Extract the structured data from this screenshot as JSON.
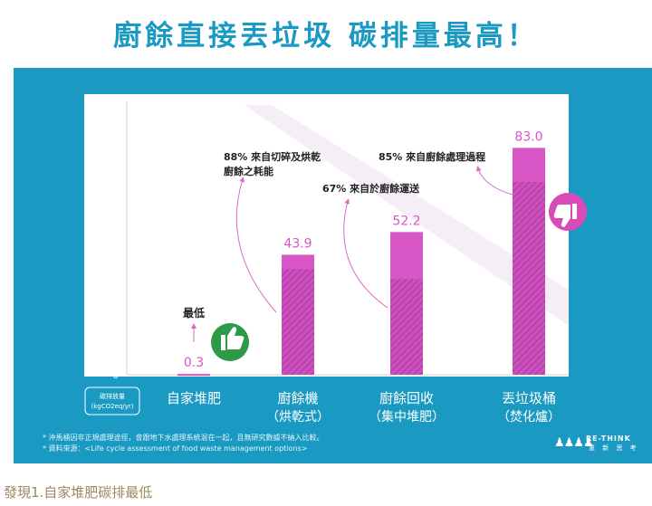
{
  "title": "廚餘直接丟垃圾 碳排量最高！",
  "chart_data": {
    "type": "bar",
    "categories": [
      {
        "line1": "自家堆肥",
        "line2": ""
      },
      {
        "line1": "廚餘機",
        "line2": "（烘乾式）"
      },
      {
        "line1": "廚餘回收",
        "line2": "（集中堆肥）"
      },
      {
        "line1": "丟垃圾桶",
        "line2": "（焚化爐）"
      }
    ],
    "values": [
      0.3,
      43.9,
      52.2,
      83.0
    ],
    "value_labels": [
      "0.3",
      "43.9",
      "52.2",
      "83.0"
    ],
    "hatched_share": [
      0,
      0.88,
      0.67,
      0.85
    ],
    "ylim": [
      0,
      100
    ],
    "yticks": [
      "0",
      "50",
      "100"
    ],
    "ylabel_lines": [
      "碳排放量",
      "(kgCO2eq/yr)"
    ],
    "annotations": [
      {
        "lines": [
          "最低"
        ]
      },
      {
        "lines": [
          "88% 來自切碎及烘乾",
          "廚餘之耗能"
        ]
      },
      {
        "lines": [
          "67% 來自於廚餘運送"
        ]
      },
      {
        "lines": [
          "85% 來自廚餘處理過程"
        ]
      }
    ],
    "colors": {
      "bar": "#d956c7",
      "hatch": "#b33aa4",
      "panel": "#1a9ac2",
      "thumb_up": "#2e9a47",
      "thumb_down": "#d94bb6"
    }
  },
  "icons": {
    "thumb_up": "thumbs-up-icon",
    "thumb_down": "thumbs-down-icon"
  },
  "footnotes": [
    "* 沖馬桶因非正規處理途徑，會跟地下水處理系統混在一起，且無研究數據不納入比較。",
    "* 資料來源：<Life cycle assessment of food waste management options>"
  ],
  "logo": {
    "brand": "RE-THINK",
    "sub": "重 新 思 考"
  },
  "caption": "發現1.自家堆肥碳排最低"
}
